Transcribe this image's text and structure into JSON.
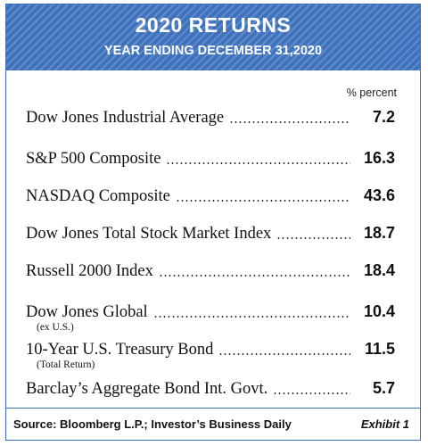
{
  "header": {
    "title": "2020 RETURNS",
    "subtitle": "YEAR ENDING DECEMBER 31,2020"
  },
  "table": {
    "unit_label": "% percent",
    "rows": [
      {
        "label": "Dow Jones Industrial Average",
        "value": 7.2
      },
      {
        "label": "S&P 500 Composite",
        "value": 16.3
      },
      {
        "label": "NASDAQ Composite",
        "value": 43.6
      },
      {
        "label": "Dow Jones Total Stock Market Index",
        "value": 18.7
      },
      {
        "label": "Russell 2000 Index",
        "value": 18.4
      },
      {
        "label": "Dow Jones Global",
        "note": "(ex U.S.)",
        "value": 10.4
      },
      {
        "label": "10-Year U.S. Treasury Bond",
        "note": "(Total Return)",
        "value": 11.5
      },
      {
        "label": "Barclay’s Aggregate Bond Int. Govt.",
        "value": 5.7
      }
    ]
  },
  "footer": {
    "source": "Source: Bloomberg L.P.; Investor’s Business Daily",
    "exhibit": "Exhibit 1"
  }
}
